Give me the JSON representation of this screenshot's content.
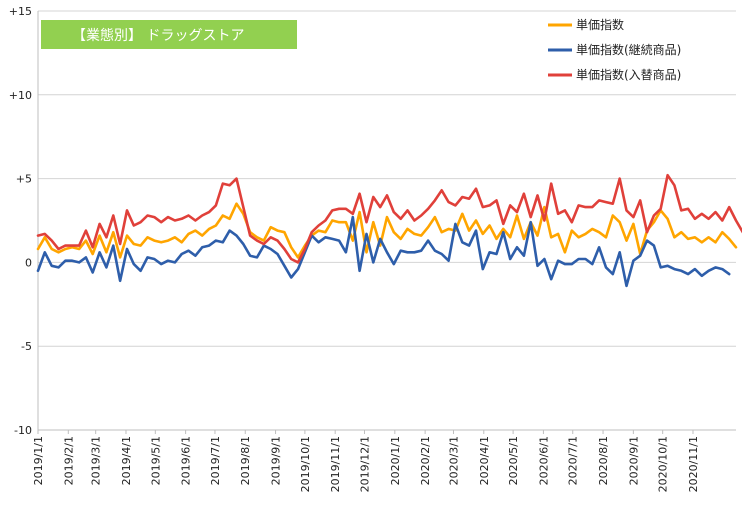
{
  "chart_data": {
    "type": "line",
    "title": "【業態別】 ドラッグストア",
    "title_box_color": "#92D050",
    "xlabel": "",
    "ylabel": "",
    "ylim": [
      -10,
      15
    ],
    "yticks": [
      15,
      10,
      5,
      0,
      -5,
      -10
    ],
    "ytick_labels": [
      "+15",
      "+10",
      "+5",
      "0",
      "-5",
      "-10"
    ],
    "grid": "horizontal",
    "legend_position": "top-right",
    "x_start_date": "2019-01-01",
    "x_tick_labels": [
      "2019/1/1",
      "2019/2/1",
      "2019/3/1",
      "2019/4/1",
      "2019/5/1",
      "2019/6/1",
      "2019/7/1",
      "2019/8/1",
      "2019/9/1",
      "2019/10/1",
      "2019/11/1",
      "2019/12/1",
      "2020/1/1",
      "2020/2/1",
      "2020/3/1",
      "2020/4/1",
      "2020/5/1",
      "2020/6/1",
      "2020/7/1",
      "2020/8/1",
      "2020/9/1",
      "2020/10/1",
      "2020/11/1"
    ],
    "series": [
      {
        "name": "単価指数",
        "color": "#FFA500",
        "values": [
          0.8,
          1.5,
          0.8,
          0.6,
          0.8,
          0.9,
          0.8,
          1.3,
          0.5,
          1.6,
          0.6,
          1.8,
          0.3,
          1.6,
          1.1,
          1.0,
          1.5,
          1.3,
          1.2,
          1.3,
          1.5,
          1.2,
          1.7,
          1.9,
          1.6,
          2.0,
          2.2,
          2.8,
          2.6,
          3.5,
          2.9,
          1.8,
          1.5,
          1.3,
          2.1,
          1.9,
          1.8,
          0.9,
          0.3,
          1.0,
          1.6,
          1.9,
          1.8,
          2.5,
          2.4,
          2.4,
          1.3,
          3.0,
          0.6,
          2.4,
          1.0,
          2.7,
          1.8,
          1.4,
          2.0,
          1.7,
          1.6,
          2.1,
          2.7,
          1.8,
          2.0,
          1.9,
          2.9,
          1.9,
          2.5,
          1.7,
          2.2,
          1.4,
          2.0,
          1.5,
          2.8,
          1.4,
          2.4,
          1.6,
          3.3,
          1.5,
          1.7,
          0.6,
          1.9,
          1.5,
          1.7,
          2.0,
          1.8,
          1.5,
          2.8,
          2.4,
          1.3,
          2.3,
          0.5,
          1.9,
          2.4,
          3.1,
          2.6,
          1.5,
          1.8,
          1.4,
          1.5,
          1.2,
          1.5,
          1.2,
          1.8,
          1.4,
          0.9
        ]
      },
      {
        "name": "単価指数(継続商品)",
        "color": "#2E5EAA",
        "values": [
          -0.5,
          0.6,
          -0.2,
          -0.3,
          0.1,
          0.1,
          0.0,
          0.3,
          -0.6,
          0.6,
          -0.3,
          1.0,
          -1.1,
          0.8,
          -0.1,
          -0.5,
          0.3,
          0.2,
          -0.1,
          0.1,
          0.0,
          0.5,
          0.7,
          0.4,
          0.9,
          1.0,
          1.3,
          1.2,
          1.9,
          1.6,
          1.1,
          0.4,
          0.3,
          1.0,
          0.8,
          0.5,
          -0.2,
          -0.9,
          -0.4,
          0.6,
          1.6,
          1.2,
          1.5,
          1.4,
          1.3,
          0.6,
          2.7,
          -0.5,
          1.7,
          0.0,
          1.4,
          0.6,
          -0.1,
          0.7,
          0.6,
          0.6,
          0.7,
          1.3,
          0.7,
          0.5,
          0.1,
          2.3,
          1.2,
          1.0,
          1.9,
          -0.4,
          0.6,
          0.5,
          1.8,
          0.2,
          0.9,
          0.4,
          2.4,
          -0.2,
          0.2,
          -1.0,
          0.1,
          -0.1,
          -0.1,
          0.2,
          0.2,
          -0.1,
          0.9,
          -0.3,
          -0.7,
          0.6,
          -1.4,
          0.1,
          0.4,
          1.3,
          1.0,
          -0.3,
          -0.2,
          -0.4,
          -0.5,
          -0.7,
          -0.4,
          -0.8,
          -0.5,
          -0.3,
          -0.4,
          -0.7
        ]
      },
      {
        "name": "単価指数(入替商品)",
        "color": "#E0403A",
        "values": [
          1.6,
          1.7,
          1.3,
          0.8,
          1.0,
          1.0,
          1.0,
          1.9,
          0.9,
          2.3,
          1.5,
          2.8,
          1.1,
          3.1,
          2.2,
          2.4,
          2.8,
          2.7,
          2.4,
          2.7,
          2.5,
          2.6,
          2.8,
          2.5,
          2.8,
          3.0,
          3.4,
          4.7,
          4.6,
          5.0,
          3.3,
          1.6,
          1.3,
          1.1,
          1.5,
          1.3,
          0.8,
          0.2,
          0.0,
          0.8,
          1.8,
          2.2,
          2.5,
          3.1,
          3.2,
          3.2,
          2.9,
          4.1,
          2.4,
          3.9,
          3.3,
          4.0,
          3.0,
          2.6,
          3.1,
          2.5,
          2.8,
          3.2,
          3.7,
          4.3,
          3.6,
          3.4,
          3.9,
          3.8,
          4.4,
          3.3,
          3.4,
          3.7,
          2.3,
          3.4,
          3.0,
          4.1,
          2.7,
          4.0,
          2.5,
          4.7,
          2.9,
          3.1,
          2.4,
          3.4,
          3.3,
          3.3,
          3.7,
          3.6,
          3.5,
          5.0,
          3.1,
          2.7,
          3.7,
          1.8,
          2.8,
          3.2,
          5.2,
          4.6,
          3.1,
          3.2,
          2.6,
          2.9,
          2.6,
          3.0,
          2.5,
          3.3,
          2.5,
          1.8
        ]
      }
    ]
  }
}
